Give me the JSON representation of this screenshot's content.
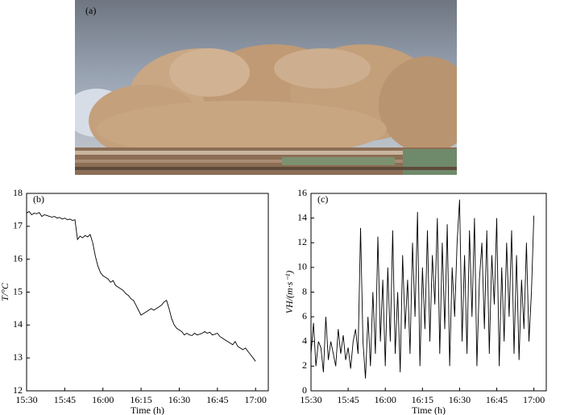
{
  "photo": {
    "label": "(a)"
  },
  "chart_data": [
    {
      "type": "line",
      "panel_label": "(b)",
      "x_label": "Time (h)",
      "y_label": "T/°C",
      "color": "#000000",
      "xlim": [
        "15:30",
        "17:05"
      ],
      "xticks": [
        "15:30",
        "15:45",
        "16:00",
        "16:15",
        "16:30",
        "16:45",
        "17:00"
      ],
      "ylim": [
        12,
        18
      ],
      "yticks": [
        12,
        13,
        14,
        15,
        16,
        17,
        18
      ],
      "x": [
        "15:30",
        "15:31",
        "15:32",
        "15:33",
        "15:34",
        "15:35",
        "15:36",
        "15:37",
        "15:38",
        "15:39",
        "15:40",
        "15:41",
        "15:42",
        "15:43",
        "15:44",
        "15:45",
        "15:46",
        "15:47",
        "15:48",
        "15:49",
        "15:50",
        "15:51",
        "15:52",
        "15:53",
        "15:54",
        "15:55",
        "15:56",
        "15:57",
        "15:58",
        "15:59",
        "16:00",
        "16:01",
        "16:02",
        "16:03",
        "16:04",
        "16:05",
        "16:06",
        "16:07",
        "16:08",
        "16:09",
        "16:10",
        "16:11",
        "16:12",
        "16:13",
        "16:14",
        "16:15",
        "16:16",
        "16:17",
        "16:18",
        "16:19",
        "16:20",
        "16:21",
        "16:22",
        "16:23",
        "16:24",
        "16:25",
        "16:26",
        "16:27",
        "16:28",
        "16:29",
        "16:30",
        "16:31",
        "16:32",
        "16:33",
        "16:34",
        "16:35",
        "16:36",
        "16:37",
        "16:38",
        "16:39",
        "16:40",
        "16:41",
        "16:42",
        "16:43",
        "16:44",
        "16:45",
        "16:46",
        "16:47",
        "16:48",
        "16:49",
        "16:50",
        "16:51",
        "16:52",
        "16:53",
        "16:54",
        "16:55",
        "16:56",
        "16:57",
        "16:58",
        "16:59",
        "17:00"
      ],
      "values": [
        17.4,
        17.45,
        17.35,
        17.4,
        17.38,
        17.42,
        17.3,
        17.35,
        17.33,
        17.3,
        17.28,
        17.3,
        17.25,
        17.27,
        17.22,
        17.25,
        17.2,
        17.22,
        17.18,
        17.2,
        16.6,
        16.7,
        16.65,
        16.72,
        16.68,
        16.75,
        16.5,
        16.1,
        15.8,
        15.6,
        15.5,
        15.45,
        15.4,
        15.3,
        15.35,
        15.2,
        15.15,
        15.1,
        15.05,
        14.95,
        14.9,
        14.8,
        14.75,
        14.6,
        14.45,
        14.3,
        14.35,
        14.4,
        14.45,
        14.5,
        14.45,
        14.5,
        14.55,
        14.6,
        14.7,
        14.75,
        14.5,
        14.2,
        14.0,
        13.9,
        13.85,
        13.8,
        13.7,
        13.75,
        13.7,
        13.68,
        13.75,
        13.7,
        13.72,
        13.75,
        13.8,
        13.75,
        13.78,
        13.7,
        13.72,
        13.75,
        13.65,
        13.6,
        13.55,
        13.5,
        13.45,
        13.4,
        13.5,
        13.35,
        13.3,
        13.25,
        13.3,
        13.2,
        13.1,
        13.0,
        12.9
      ]
    },
    {
      "type": "line",
      "panel_label": "(c)",
      "x_label": "Time (h)",
      "y_label": "VH/(m·s⁻¹)",
      "color": "#000000",
      "xlim": [
        "15:30",
        "17:05"
      ],
      "xticks": [
        "15:30",
        "15:45",
        "16:00",
        "16:15",
        "16:30",
        "16:45",
        "17:00"
      ],
      "ylim": [
        0,
        16
      ],
      "yticks": [
        0,
        2,
        4,
        6,
        8,
        10,
        12,
        14,
        16
      ],
      "x": [
        "15:30",
        "15:31",
        "15:32",
        "15:33",
        "15:34",
        "15:35",
        "15:36",
        "15:37",
        "15:38",
        "15:39",
        "15:40",
        "15:41",
        "15:42",
        "15:43",
        "15:44",
        "15:45",
        "15:46",
        "15:47",
        "15:48",
        "15:49",
        "15:50",
        "15:51",
        "15:52",
        "15:53",
        "15:54",
        "15:55",
        "15:56",
        "15:57",
        "15:58",
        "15:59",
        "16:00",
        "16:01",
        "16:02",
        "16:03",
        "16:04",
        "16:05",
        "16:06",
        "16:07",
        "16:08",
        "16:09",
        "16:10",
        "16:11",
        "16:12",
        "16:13",
        "16:14",
        "16:15",
        "16:16",
        "16:17",
        "16:18",
        "16:19",
        "16:20",
        "16:21",
        "16:22",
        "16:23",
        "16:24",
        "16:25",
        "16:26",
        "16:27",
        "16:28",
        "16:29",
        "16:30",
        "16:31",
        "16:32",
        "16:33",
        "16:34",
        "16:35",
        "16:36",
        "16:37",
        "16:38",
        "16:39",
        "16:40",
        "16:41",
        "16:42",
        "16:43",
        "16:44",
        "16:45",
        "16:46",
        "16:47",
        "16:48",
        "16:49",
        "16:50",
        "16:51",
        "16:52",
        "16:53",
        "16:54",
        "16:55",
        "16:56",
        "16:57",
        "16:58",
        "16:59",
        "17:00"
      ],
      "values": [
        3,
        5.5,
        2,
        4,
        3.5,
        1.5,
        6,
        2.5,
        4,
        3,
        2,
        5,
        3,
        4.5,
        2.5,
        3.5,
        1.8,
        4,
        5,
        3,
        13.2,
        4,
        1,
        6,
        2,
        8,
        3,
        12.5,
        4,
        9,
        2,
        10,
        4,
        13,
        3,
        8,
        1.5,
        11,
        5,
        9,
        3,
        12,
        6,
        14.5,
        2,
        10,
        5,
        13,
        4,
        11,
        7,
        14,
        3,
        12,
        5,
        13.5,
        2,
        10,
        6,
        12,
        15.5,
        4,
        11,
        3,
        13,
        6,
        14,
        2,
        9,
        12,
        5,
        13,
        3,
        11,
        7,
        14,
        2,
        10,
        4,
        12,
        6,
        13,
        3,
        11,
        2.5,
        9,
        5,
        12,
        4,
        8,
        14.2
      ]
    }
  ]
}
